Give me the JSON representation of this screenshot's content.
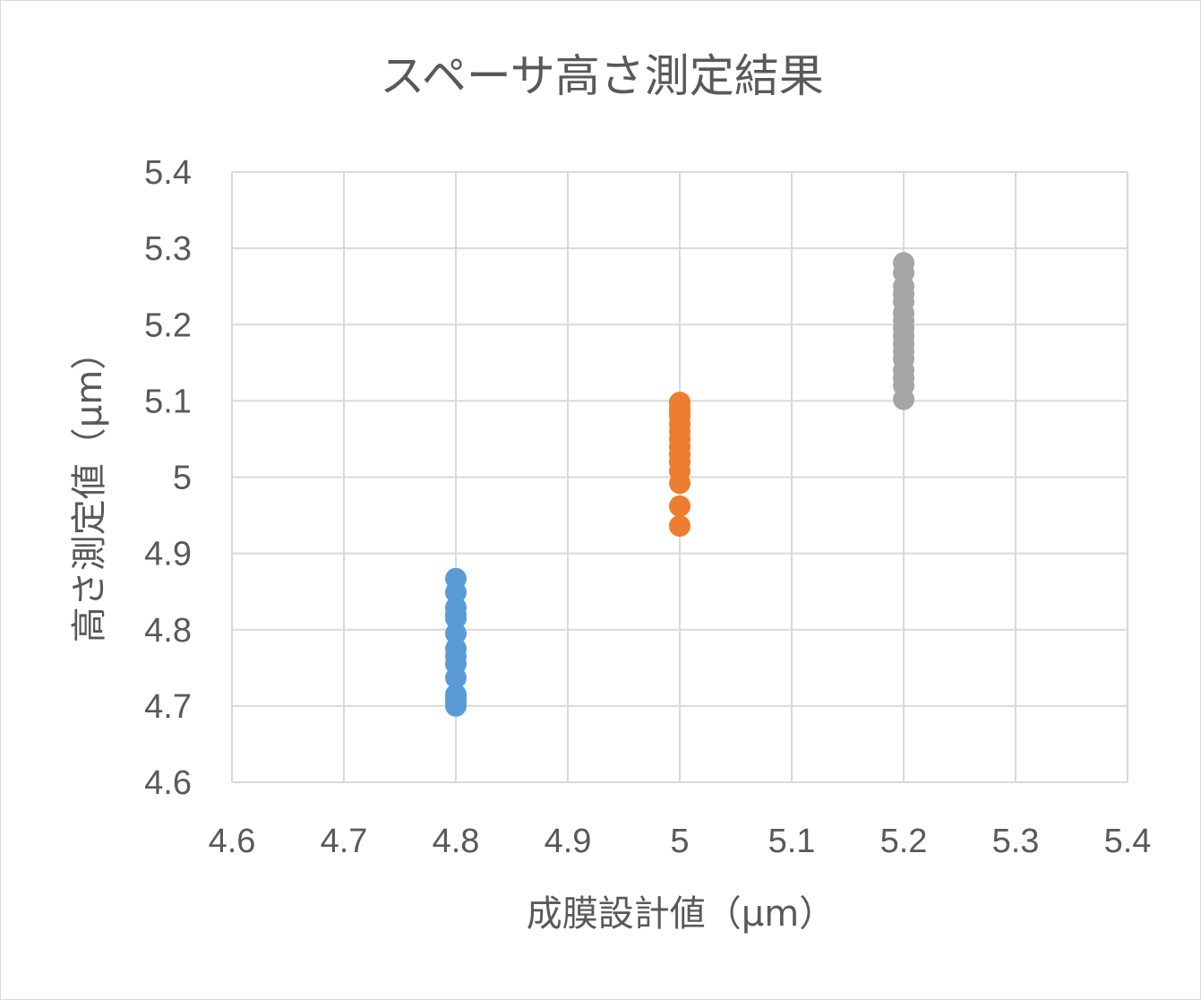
{
  "chart_data": {
    "type": "scatter",
    "title": "スペーサ高さ測定結果",
    "xlabel": "成膜設計値（μm）",
    "ylabel": "高さ測定値（μm）",
    "xlim": [
      4.6,
      5.4
    ],
    "ylim": [
      4.6,
      5.4
    ],
    "x_ticks": [
      "4.6",
      "4.7",
      "4.8",
      "4.9",
      "5",
      "5.1",
      "5.2",
      "5.3",
      "5.4"
    ],
    "y_ticks": [
      "5.4",
      "5.3",
      "5.2",
      "5.1",
      "5",
      "4.9",
      "4.8",
      "4.7",
      "4.6"
    ],
    "grid": true,
    "legend": "none",
    "series": [
      {
        "color": "#5b9bd5",
        "x": [
          4.8,
          4.8,
          4.8,
          4.8,
          4.8,
          4.8,
          4.8,
          4.8,
          4.8,
          4.8,
          4.8,
          4.8,
          4.8,
          4.8
        ],
        "y": [
          4.867,
          4.849,
          4.829,
          4.82,
          4.815,
          4.795,
          4.775,
          4.765,
          4.755,
          4.737,
          4.715,
          4.71,
          4.705,
          4.7
        ]
      },
      {
        "color": "#ed7d31",
        "x": [
          5.0,
          5.0,
          5.0,
          5.0,
          5.0,
          5.0,
          5.0,
          5.0,
          5.0,
          5.0,
          5.0,
          5.0,
          5.0,
          5.0
        ],
        "y": [
          5.098,
          5.09,
          5.08,
          5.07,
          5.06,
          5.05,
          5.04,
          5.03,
          5.02,
          5.008,
          4.992,
          4.962,
          4.936,
          5.085
        ]
      },
      {
        "color": "#a5a5a5",
        "x": [
          5.2,
          5.2,
          5.2,
          5.2,
          5.2,
          5.2,
          5.2,
          5.2,
          5.2,
          5.2,
          5.2,
          5.2,
          5.2,
          5.2,
          5.2,
          5.2
        ],
        "y": [
          5.281,
          5.268,
          5.25,
          5.24,
          5.23,
          5.215,
          5.205,
          5.195,
          5.185,
          5.175,
          5.165,
          5.155,
          5.14,
          5.13,
          5.12,
          5.102
        ]
      }
    ]
  }
}
